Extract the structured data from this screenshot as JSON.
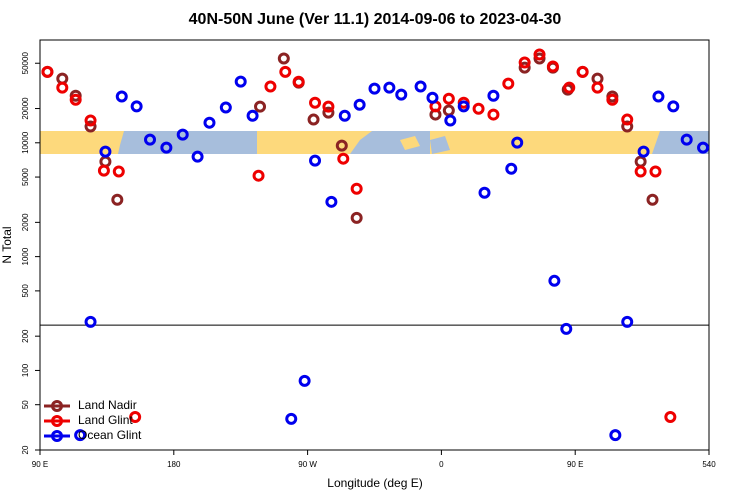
{
  "chart_data": {
    "type": "scatter",
    "title": "40N-50N June (Ver 11.1)   2014-09-06 to 2023-04-30",
    "x_label": "Longitude (deg E)",
    "y_label": "N Total",
    "xlim": [
      90,
      540
    ],
    "xticks": [
      {
        "value": 90,
        "label": "90 E"
      },
      180,
      {
        "value": 270,
        "label": "90 W"
      },
      {
        "value": 360,
        "label": "0"
      },
      {
        "value": 450,
        "label": "90 E"
      },
      540
    ],
    "ylim": [
      20,
      80000
    ],
    "log_y": true,
    "yticks": [
      20,
      50,
      100,
      200,
      500,
      1000,
      2000,
      5000,
      10000,
      20000,
      50000
    ],
    "split_at": 250,
    "legend": "lower left",
    "series": [
      {
        "name": "Land Nadir",
        "color": "#8b2323",
        "x": [
          95,
          105,
          114,
          124,
          134,
          142,
          238,
          254,
          264,
          274,
          284,
          293,
          303,
          356,
          365,
          416,
          426,
          435,
          445,
          455,
          465,
          475,
          485,
          494,
          502
        ],
        "values": [
          42000,
          36600,
          25900,
          13900,
          6830,
          3160,
          20800,
          55000,
          33800,
          16000,
          18400,
          9440,
          2190,
          17700,
          19200,
          45800,
          55000,
          45800,
          29300,
          42000,
          36600,
          25500,
          13900,
          6830,
          3160
        ]
      },
      {
        "name": "Land Glint",
        "color": "#ee0000",
        "x": [
          95,
          105,
          114,
          124,
          133,
          143,
          154,
          237,
          245,
          255,
          264,
          275,
          284,
          294,
          303,
          356,
          365,
          375,
          385,
          395,
          405,
          416,
          426,
          435,
          446,
          455,
          465,
          475,
          485,
          494,
          504,
          514
        ],
        "values": [
          42000,
          30500,
          23900,
          15700,
          5690,
          5600,
          39,
          5140,
          31200,
          42000,
          34400,
          22500,
          20800,
          7250,
          3950,
          20900,
          24400,
          22500,
          19900,
          17700,
          33100,
          50700,
          59600,
          46800,
          30500,
          42000,
          30500,
          23900,
          16000,
          5600,
          5600,
          39
        ]
      },
      {
        "name": "Ocean Glint",
        "color": "#0000ee",
        "x": [
          124,
          117,
          134,
          145,
          155,
          164,
          175,
          186,
          196,
          204,
          215,
          225,
          233,
          259,
          268,
          275,
          286,
          295,
          305,
          315,
          325,
          333,
          346,
          354,
          366,
          375,
          389,
          395,
          407,
          411,
          436,
          444,
          477,
          485,
          496,
          506,
          516,
          525,
          536
        ],
        "values": [
          267,
          27,
          8360,
          25500,
          20900,
          10650,
          9060,
          11800,
          7550,
          15000,
          20400,
          34500,
          17300,
          37.5,
          81,
          6970,
          3030,
          17300,
          21600,
          29900,
          30500,
          26500,
          31200,
          24900,
          15700,
          20900,
          3640,
          25900,
          5920,
          10030,
          613,
          232,
          27,
          267,
          8360,
          25500,
          20900,
          10650,
          9060
        ]
      }
    ]
  }
}
